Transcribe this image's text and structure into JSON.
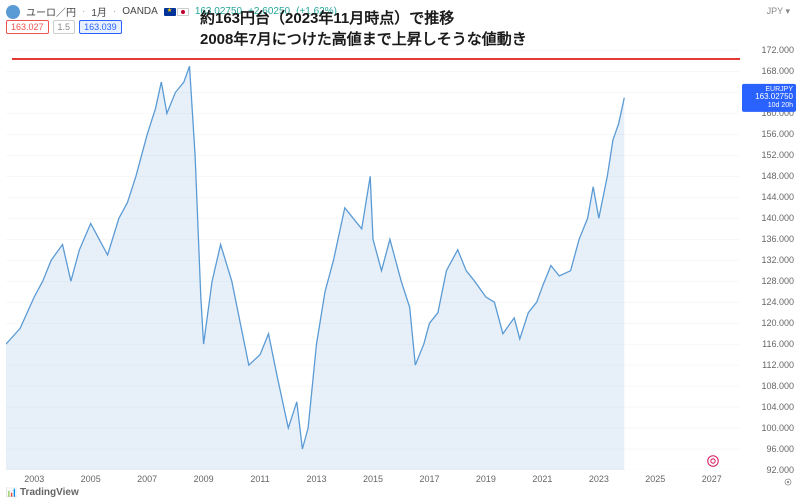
{
  "header": {
    "symbol_name": "ユーロ／円",
    "interval": "1月",
    "provider": "OANDA",
    "price": "163.02750",
    "change": "+2.60250",
    "change_pct": "(+1.62%)",
    "badge_open": "163.027",
    "badge_spread": "1.5",
    "badge_close": "163.039"
  },
  "annotation": {
    "line1": "約163円台（2023年11月時点）で推移",
    "line2": "2008年7月につけた高値まで上昇しそうな値動き"
  },
  "jpy_label": "JPY",
  "tv_logo": "TradingView",
  "current_label": {
    "symbol": "EURJPY",
    "price": "163.02750",
    "sub": "10d 20h"
  },
  "chart": {
    "type": "area",
    "line_color": "#5b9bd5",
    "fill_color": "rgba(91,155,213,0.15)",
    "line_width": 1.3,
    "background_color": "#ffffff",
    "grid_color": "#f0f0f0",
    "x_range": [
      2002,
      2028
    ],
    "y_range": [
      92,
      174
    ],
    "x_ticks": [
      2003,
      2005,
      2007,
      2009,
      2011,
      2013,
      2015,
      2017,
      2019,
      2021,
      2023,
      2025,
      2027
    ],
    "y_ticks": [
      92,
      96,
      100,
      104,
      108,
      112,
      116,
      120,
      124,
      128,
      132,
      136,
      140,
      144,
      148,
      152,
      156,
      160,
      164,
      168,
      172
    ],
    "resistance_line_y": 168,
    "resistance_color": "#e53935",
    "current_price": 163.03,
    "series": [
      {
        "x": 2002.0,
        "y": 116
      },
      {
        "x": 2002.5,
        "y": 119
      },
      {
        "x": 2003.0,
        "y": 125
      },
      {
        "x": 2003.3,
        "y": 128
      },
      {
        "x": 2003.6,
        "y": 132
      },
      {
        "x": 2004.0,
        "y": 135
      },
      {
        "x": 2004.3,
        "y": 128
      },
      {
        "x": 2004.6,
        "y": 134
      },
      {
        "x": 2005.0,
        "y": 139
      },
      {
        "x": 2005.3,
        "y": 136
      },
      {
        "x": 2005.6,
        "y": 133
      },
      {
        "x": 2006.0,
        "y": 140
      },
      {
        "x": 2006.3,
        "y": 143
      },
      {
        "x": 2006.6,
        "y": 148
      },
      {
        "x": 2007.0,
        "y": 156
      },
      {
        "x": 2007.3,
        "y": 161
      },
      {
        "x": 2007.5,
        "y": 166
      },
      {
        "x": 2007.7,
        "y": 160
      },
      {
        "x": 2008.0,
        "y": 164
      },
      {
        "x": 2008.3,
        "y": 166
      },
      {
        "x": 2008.5,
        "y": 169
      },
      {
        "x": 2008.7,
        "y": 152
      },
      {
        "x": 2008.9,
        "y": 125
      },
      {
        "x": 2009.0,
        "y": 116
      },
      {
        "x": 2009.3,
        "y": 128
      },
      {
        "x": 2009.6,
        "y": 135
      },
      {
        "x": 2010.0,
        "y": 128
      },
      {
        "x": 2010.3,
        "y": 120
      },
      {
        "x": 2010.6,
        "y": 112
      },
      {
        "x": 2011.0,
        "y": 114
      },
      {
        "x": 2011.3,
        "y": 118
      },
      {
        "x": 2011.6,
        "y": 110
      },
      {
        "x": 2012.0,
        "y": 100
      },
      {
        "x": 2012.3,
        "y": 105
      },
      {
        "x": 2012.5,
        "y": 96
      },
      {
        "x": 2012.7,
        "y": 100
      },
      {
        "x": 2013.0,
        "y": 116
      },
      {
        "x": 2013.3,
        "y": 126
      },
      {
        "x": 2013.6,
        "y": 132
      },
      {
        "x": 2014.0,
        "y": 142
      },
      {
        "x": 2014.3,
        "y": 140
      },
      {
        "x": 2014.6,
        "y": 138
      },
      {
        "x": 2014.9,
        "y": 148
      },
      {
        "x": 2015.0,
        "y": 136
      },
      {
        "x": 2015.3,
        "y": 130
      },
      {
        "x": 2015.6,
        "y": 136
      },
      {
        "x": 2016.0,
        "y": 128
      },
      {
        "x": 2016.3,
        "y": 123
      },
      {
        "x": 2016.5,
        "y": 112
      },
      {
        "x": 2016.8,
        "y": 116
      },
      {
        "x": 2017.0,
        "y": 120
      },
      {
        "x": 2017.3,
        "y": 122
      },
      {
        "x": 2017.6,
        "y": 130
      },
      {
        "x": 2018.0,
        "y": 134
      },
      {
        "x": 2018.3,
        "y": 130
      },
      {
        "x": 2018.6,
        "y": 128
      },
      {
        "x": 2019.0,
        "y": 125
      },
      {
        "x": 2019.3,
        "y": 124
      },
      {
        "x": 2019.6,
        "y": 118
      },
      {
        "x": 2020.0,
        "y": 121
      },
      {
        "x": 2020.2,
        "y": 117
      },
      {
        "x": 2020.5,
        "y": 122
      },
      {
        "x": 2020.8,
        "y": 124
      },
      {
        "x": 2021.0,
        "y": 127
      },
      {
        "x": 2021.3,
        "y": 131
      },
      {
        "x": 2021.6,
        "y": 129
      },
      {
        "x": 2022.0,
        "y": 130
      },
      {
        "x": 2022.3,
        "y": 136
      },
      {
        "x": 2022.6,
        "y": 140
      },
      {
        "x": 2022.8,
        "y": 146
      },
      {
        "x": 2023.0,
        "y": 140
      },
      {
        "x": 2023.3,
        "y": 148
      },
      {
        "x": 2023.5,
        "y": 155
      },
      {
        "x": 2023.7,
        "y": 158
      },
      {
        "x": 2023.9,
        "y": 163
      }
    ]
  }
}
